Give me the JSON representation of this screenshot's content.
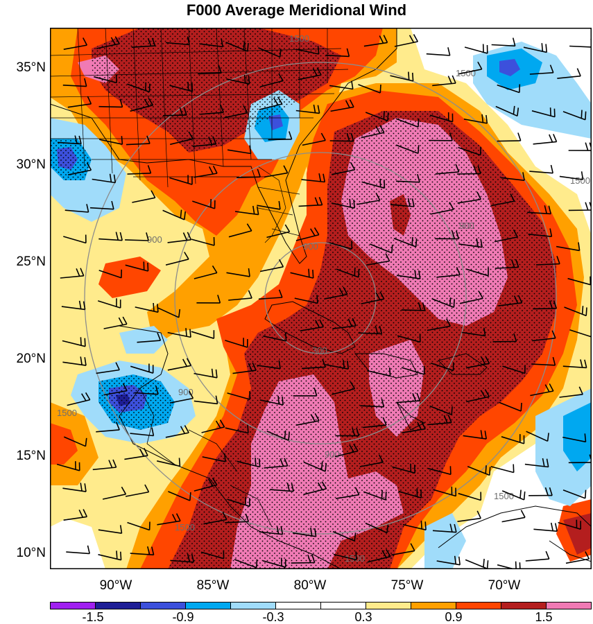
{
  "title": "F000 Average Meridional Wind",
  "lat_labels": [
    "35°N",
    "30°N",
    "25°N",
    "20°N",
    "15°N",
    "10°N"
  ],
  "lon_labels": [
    "90°W",
    "85°W",
    "80°W",
    "75°W",
    "70°W"
  ],
  "range_ring_labels": [
    "300",
    "900",
    "900",
    "900",
    "1500",
    "1500",
    "1500",
    "1500",
    "1500",
    "1500",
    "900",
    "900",
    "1500"
  ],
  "colorbar": {
    "colors": [
      "#a020f0",
      "#1e1e96",
      "#3c50dc",
      "#00a8f0",
      "#a0dcfa",
      "#ffffff",
      "#ffffff",
      "#ffeb8c",
      "#ffa000",
      "#ff4600",
      "#b41e1e",
      "#f07ab4"
    ],
    "labels": [
      "-1.5",
      "-0.9",
      "-0.3",
      "0.3",
      "0.9",
      "1.5"
    ]
  },
  "shading_colors": {
    "pink": "#f07ab4",
    "darkred": "#b41e1e",
    "red": "#ff4600",
    "orange": "#ffa000",
    "yellow": "#ffeb8c",
    "lightblue": "#a0dcfa",
    "blue": "#00a8f0",
    "medblue": "#3c50dc",
    "darkblue": "#1e1e96"
  }
}
